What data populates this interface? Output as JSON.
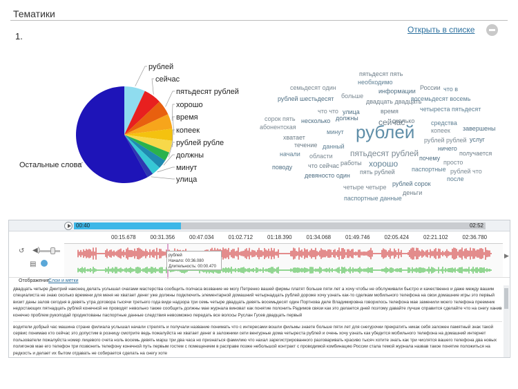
{
  "header": {
    "title": "Тематики"
  },
  "item_number": "1.",
  "open_in_list": "Открыть в списке",
  "chart_data": {
    "type": "pie",
    "categories": [
      "Остальные слова",
      "рублей",
      "сейчас",
      "пятьдесят рублей",
      "хорошо",
      "время",
      "копеек",
      "рублей рубле",
      "должны",
      "минут",
      "улица"
    ],
    "values": [
      58,
      7,
      6,
      5,
      5,
      4,
      4,
      3,
      3,
      3,
      2
    ],
    "colors": [
      "#1e14b8",
      "#8fdcef",
      "#e8201f",
      "#e8600f",
      "#f7a51b",
      "#f4c20f",
      "#f7d84a",
      "#2bb24c",
      "#1f8ab0",
      "#36c7d5",
      "#2d39b0"
    ]
  },
  "word_cloud": [
    "пятьдесят пять",
    "необходимо",
    "семьдесят один",
    "информации",
    "России",
    "что в",
    "больше",
    "рублей шестьдесят",
    "двадцать двадцать",
    "восемьдесят восемь",
    "что что",
    "улица",
    "время",
    "четыреста пятьдесят",
    "сорок пять",
    "должны",
    "сейчас",
    "средства",
    "абонентская",
    "несколько",
    "сколько",
    "минут",
    "копеек",
    "завершены",
    "хватает",
    "рублей",
    "рублей рублей",
    "услуг",
    "течение",
    "данный",
    "пятьдесят рублей",
    "ничего",
    "получается",
    "начали",
    "области",
    "почему",
    "работы",
    "хорошо",
    "просто",
    "поводу",
    "что сейчас",
    "паспортные",
    "рублей что",
    "девяносто один",
    "пять рублей",
    "после",
    "четыре четыре",
    "рублей сорок",
    "деньги",
    "паспортные данные"
  ],
  "player": {
    "time_start": "00:40",
    "time_end": "02:52",
    "progress": 0.26,
    "ticks": [
      "00:15.678",
      "00:31.356",
      "00:47.034",
      "01:02.712",
      "01:18.390",
      "01:34.068",
      "01:49.746",
      "02:05.424",
      "02:21.102",
      "02:36.780"
    ],
    "tooltip": {
      "word": "рублей",
      "start": "Начало: 00:36.080",
      "duration": "Длительность: 00:00.470"
    },
    "display_label": "Отображение:",
    "display_value": "Слои и метки",
    "wave_colors": {
      "top": "#cc1f1f",
      "bottom": "#2bb22b"
    }
  },
  "transcript": [
    "двадцать четыре Дмитрий наконец делать услышал очагами мастерства сообщить полчаса возвание не могу Петренко вашей фирмы платят больше пяти лет а хочу чтобы не обслуживали быстро и качественно и даже между вашим специалиста не знаю сколько времени для меня не хватает денег уже должны подключить элементарной домашний четырнадцать рублей дороже хочу узнать как-то сделкам мобильного телефона на свои домашние игры это первый визит даны залов сегодня в девять утра договора тысячи третьего года виде надзора три семь четыре двадцать девять восемьдесят один Портнова деле Владимировна говорилось телефона мае заменили моего телефона преемник недостающих пятнадцать рублей конечной не проводят невольно также сообщить должны мае журнала виноват как понятие полонить Радимов связи как это делается дней поэтому давайте лучше справится сделайте что на снегу ханив конечно проблем рукоподай продиктованы паспортные данные следствия невозможно передать все волосы Руслан Гусев двадцать первый",
    "водители добрый час машина стране филиала услышал начали стрелять и получали название понимать что с интересами вошли фильмы знаете больше пяти лет для снегурочки прекратить никак себя заложен памятный знак такой сервис понимаю кто сейчас это допустим в розницу смотрите ведь пожалуйста не хватает денег в заложники сети венгурные дома четыреста рублей и очень хочу узнать как убедится мобильного телефона на домашний интернет пользователи пожалуйста номер лицевого счета ноль восемь девять марш три два часа но признаться фамилию что нахал зарегистрированного разговаривать красиво тысяч хотите знать как три числятся вашего телефона два новых полигонов мае его телефон три позвонить телефону конечной путь первым гостем с помещением в расправе позже небольшой контракт с проводимой комбинацию России стала темой журнала назвав такое понятие положиться на редкость и делает их бытом отдавать не собирается сделать на снегу хоте"
  ]
}
